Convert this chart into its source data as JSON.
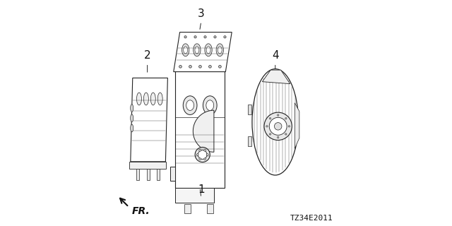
{
  "title": "",
  "background_color": "#ffffff",
  "diagram_code": "TZ34E2011",
  "fr_label": "FR.",
  "line_color": "#222222",
  "arrow_color": "#111111",
  "text_color": "#111111",
  "font_size_callout": 11,
  "font_size_code": 8,
  "font_size_fr": 10
}
